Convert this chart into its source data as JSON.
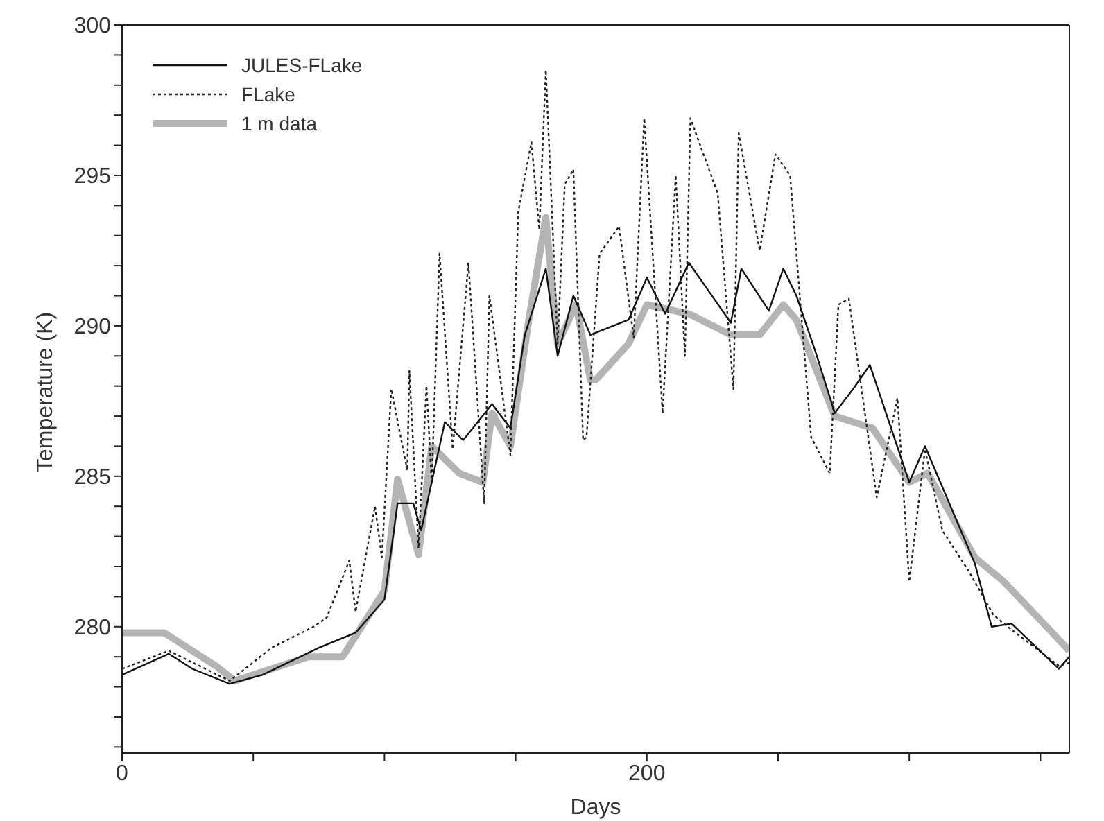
{
  "chart_data": {
    "type": "line",
    "xlabel": "Days",
    "ylabel": "Temperature (K)",
    "xlim": [
      0,
      361
    ],
    "xticks": [
      0,
      {
        "value": 50,
        "label": null
      },
      {
        "value": 100,
        "label": null
      },
      {
        "value": 150,
        "label": null
      },
      200,
      {
        "value": 250,
        "label": null
      },
      {
        "value": 300,
        "label": null
      },
      {
        "value": 350,
        "label": null
      }
    ],
    "ylim": [
      275.8,
      300
    ],
    "yticks": [
      {
        "value": 276,
        "label": null
      },
      {
        "value": 277,
        "label": null
      },
      {
        "value": 278,
        "label": null
      },
      {
        "value": 279,
        "label": null
      },
      280,
      {
        "value": 281,
        "label": null
      },
      {
        "value": 282,
        "label": null
      },
      {
        "value": 283,
        "label": null
      },
      {
        "value": 284,
        "label": null
      },
      285,
      {
        "value": 286,
        "label": null
      },
      {
        "value": 287,
        "label": null
      },
      {
        "value": 288,
        "label": null
      },
      {
        "value": 289,
        "label": null
      },
      290,
      {
        "value": 291,
        "label": null
      },
      {
        "value": 292,
        "label": null
      },
      {
        "value": 293,
        "label": null
      },
      {
        "value": 294,
        "label": null
      },
      295,
      {
        "value": 296,
        "label": null
      },
      {
        "value": 297,
        "label": null
      },
      {
        "value": 298,
        "label": null
      },
      {
        "value": 299,
        "label": null
      },
      300
    ],
    "grid": false,
    "legend": "top left",
    "marker": "none",
    "series": [
      {
        "name": "1 m data",
        "color": "#b4b4b4",
        "line_style": "solid",
        "x": [
          0,
          16,
          35.7,
          43,
          71,
          84,
          100,
          105,
          113,
          118,
          128.5,
          137.5,
          141,
          148,
          155,
          161.5,
          166,
          173,
          178.5,
          180.5,
          193,
          200,
          216,
          232,
          243,
          252,
          257,
          271.6,
          286,
          300,
          307,
          325,
          336,
          348,
          361
        ],
        "values": [
          279.8,
          279.8,
          278.7,
          278.2,
          279.0,
          279.0,
          281.2,
          284.9,
          282.4,
          286.0,
          285.1,
          284.8,
          287.1,
          286.0,
          290.2,
          293.6,
          289.4,
          290.7,
          288.2,
          288.2,
          289.4,
          290.7,
          290.4,
          289.7,
          289.7,
          290.7,
          290.2,
          287.0,
          286.6,
          284.8,
          285.1,
          282.3,
          281.5,
          280.4,
          279.2
        ]
      },
      {
        "name": "FLake",
        "color": "#222222",
        "line_style": "dotted",
        "x": [
          0,
          17.8,
          41,
          57,
          73,
          78,
          86.6,
          89,
          96.4,
          99,
          102.6,
          108.7,
          109.5,
          113,
          116,
          118,
          121,
          126,
          132,
          138,
          140,
          148,
          151,
          156,
          159,
          161.5,
          166,
          168.7,
          172,
          175.7,
          177,
          182,
          189.4,
          195,
          199,
          206,
          211,
          214.5,
          216.6,
          227,
          233,
          235,
          243,
          249,
          254.6,
          262.6,
          269.7,
          273,
          277,
          287.6,
          295.5,
          300,
          306,
          312.6,
          323,
          332,
          336,
          357,
          361
        ],
        "values": [
          278.6,
          279.2,
          278.2,
          279.3,
          280.0,
          280.3,
          282.2,
          280.5,
          284.0,
          282.3,
          287.9,
          285.2,
          288.5,
          282.6,
          288.0,
          284.8,
          292.4,
          285.9,
          292.1,
          284.1,
          291.0,
          285.7,
          293.8,
          296.1,
          293.2,
          298.5,
          289.4,
          294.7,
          295.2,
          286.2,
          286.3,
          292.4,
          293.3,
          289.6,
          296.9,
          287.1,
          295.0,
          289.0,
          296.9,
          294.4,
          287.9,
          296.4,
          292.5,
          295.7,
          295.0,
          286.3,
          285.1,
          290.7,
          290.9,
          284.3,
          287.6,
          281.5,
          285.9,
          283.2,
          281.8,
          280.4,
          280.1,
          278.7,
          278.8
        ]
      },
      {
        "name": "JULES-FLake",
        "color": "#111111",
        "line_style": "solid",
        "x": [
          0,
          17.8,
          26.8,
          41,
          53.6,
          75,
          89,
          100,
          105,
          111,
          114,
          123,
          130,
          141,
          148,
          153.5,
          161.5,
          166,
          172,
          178.5,
          193,
          200,
          207,
          216,
          232,
          236,
          246.5,
          252,
          257,
          264.4,
          271.6,
          278.6,
          285,
          300,
          306,
          325,
          331.4,
          339,
          357,
          361
        ],
        "values": [
          278.4,
          279.1,
          278.6,
          278.1,
          278.4,
          279.3,
          279.8,
          280.9,
          284.1,
          284.1,
          283.2,
          286.8,
          286.2,
          287.4,
          286.6,
          289.7,
          291.9,
          289.0,
          291.0,
          289.7,
          290.2,
          291.6,
          290.4,
          292.1,
          290.1,
          291.9,
          290.5,
          291.9,
          291.0,
          289.1,
          287.1,
          287.9,
          288.7,
          284.8,
          286.0,
          282.1,
          280.0,
          280.1,
          278.6,
          279.0
        ]
      }
    ]
  }
}
